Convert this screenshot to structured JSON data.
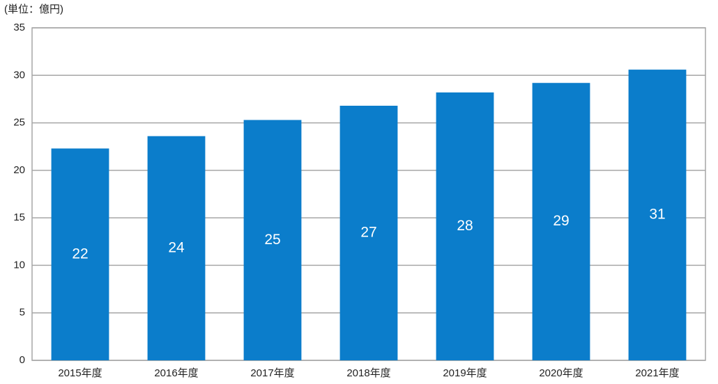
{
  "chart_data": {
    "type": "bar",
    "unit_label": "(単位：億円)",
    "categories": [
      "2015年度",
      "2016年度",
      "2017年度",
      "2018年度",
      "2019年度",
      "2020年度",
      "2021年度"
    ],
    "values": [
      22.3,
      23.6,
      25.3,
      26.8,
      28.2,
      29.2,
      30.6
    ],
    "value_labels": [
      "22",
      "24",
      "25",
      "27",
      "28",
      "29",
      "31"
    ],
    "color": "#0b7dcb",
    "ylim": [
      0,
      35
    ],
    "yticks": [
      0,
      5,
      10,
      15,
      20,
      25,
      30,
      35
    ],
    "grid": true
  }
}
